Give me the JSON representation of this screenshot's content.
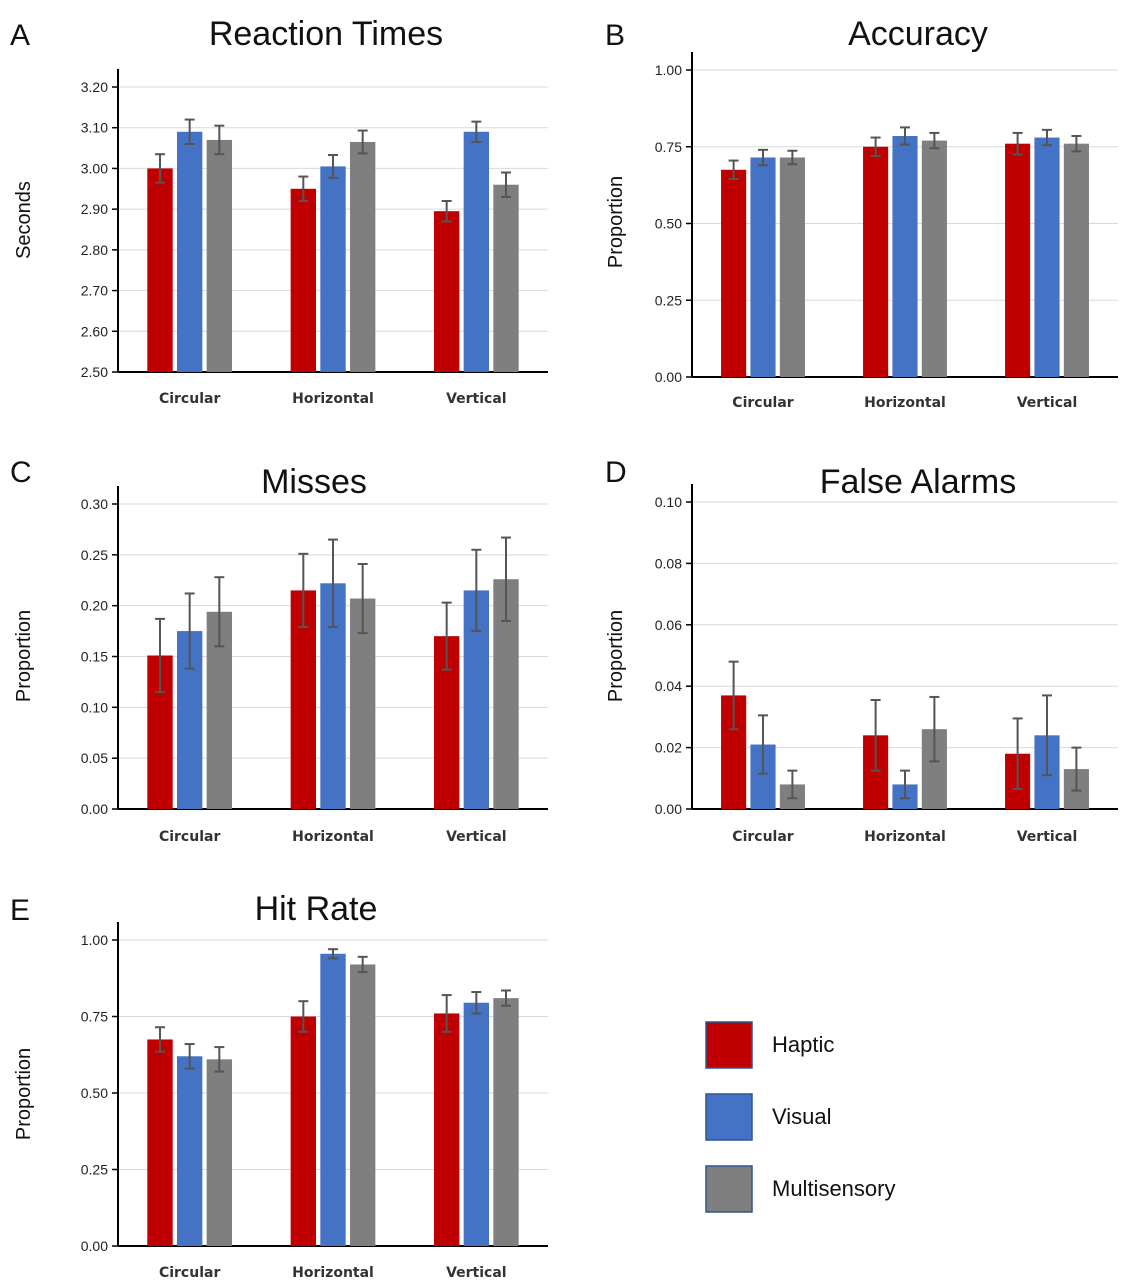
{
  "legend": {
    "items": [
      {
        "name": "Haptic",
        "color": "#c00000"
      },
      {
        "name": "Visual",
        "color": "#4472c4"
      },
      {
        "name": "Multisensory",
        "color": "#7f7f7f"
      }
    ]
  },
  "chart_data": [
    {
      "panel": "A",
      "type": "bar",
      "title": "Reaction Times",
      "ylabel": "Seconds",
      "categories": [
        "Circular",
        "Horizontal",
        "Vertical"
      ],
      "ylim": [
        2.5,
        3.2
      ],
      "yticks": [
        "2.50",
        "2.60",
        "2.70",
        "2.80",
        "2.90",
        "3.00",
        "3.10",
        "3.20"
      ],
      "grid": true,
      "series": [
        {
          "name": "Haptic",
          "values": [
            3.0,
            2.95,
            2.895
          ],
          "errors": [
            0.035,
            0.03,
            0.025
          ]
        },
        {
          "name": "Visual",
          "values": [
            3.09,
            3.005,
            3.09
          ],
          "errors": [
            0.03,
            0.028,
            0.025
          ]
        },
        {
          "name": "Multisensory",
          "values": [
            3.07,
            3.065,
            2.96
          ],
          "errors": [
            0.035,
            0.028,
            0.03
          ]
        }
      ]
    },
    {
      "panel": "B",
      "type": "bar",
      "title": "Accuracy",
      "ylabel": "Proportion",
      "categories": [
        "Circular",
        "Horizontal",
        "Vertical"
      ],
      "ylim": [
        0,
        1
      ],
      "yticks": [
        "0.00",
        "0.25",
        "0.50",
        "0.75",
        "1.00"
      ],
      "grid": true,
      "series": [
        {
          "name": "Haptic",
          "values": [
            0.675,
            0.75,
            0.76
          ],
          "errors": [
            0.03,
            0.03,
            0.035
          ]
        },
        {
          "name": "Visual",
          "values": [
            0.715,
            0.785,
            0.78
          ],
          "errors": [
            0.025,
            0.028,
            0.025
          ]
        },
        {
          "name": "Multisensory",
          "values": [
            0.715,
            0.77,
            0.76
          ],
          "errors": [
            0.022,
            0.025,
            0.025
          ]
        }
      ]
    },
    {
      "panel": "C",
      "type": "bar",
      "title": "Misses",
      "ylabel": "Proportion",
      "categories": [
        "Circular",
        "Horizontal",
        "Vertical"
      ],
      "ylim": [
        0,
        0.3
      ],
      "yticks": [
        "0.00",
        "0.05",
        "0.10",
        "0.15",
        "0.20",
        "0.25",
        "0.30"
      ],
      "grid": true,
      "series": [
        {
          "name": "Haptic",
          "values": [
            0.151,
            0.215,
            0.17
          ],
          "errors": [
            0.036,
            0.036,
            0.033
          ]
        },
        {
          "name": "Visual",
          "values": [
            0.175,
            0.222,
            0.215
          ],
          "errors": [
            0.037,
            0.043,
            0.04
          ]
        },
        {
          "name": "Multisensory",
          "values": [
            0.194,
            0.207,
            0.226
          ],
          "errors": [
            0.034,
            0.034,
            0.041
          ]
        }
      ]
    },
    {
      "panel": "D",
      "type": "bar",
      "title": "False Alarms",
      "ylabel": "Proportion",
      "categories": [
        "Circular",
        "Horizontal",
        "Vertical"
      ],
      "ylim": [
        0,
        0.1
      ],
      "yticks": [
        "0.00",
        "0.02",
        "0.04",
        "0.06",
        "0.08",
        "0.10"
      ],
      "grid": true,
      "series": [
        {
          "name": "Haptic",
          "values": [
            0.037,
            0.024,
            0.018
          ],
          "errors": [
            0.011,
            0.0115,
            0.0115
          ]
        },
        {
          "name": "Visual",
          "values": [
            0.021,
            0.008,
            0.024
          ],
          "errors": [
            0.0095,
            0.0045,
            0.013
          ]
        },
        {
          "name": "Multisensory",
          "values": [
            0.008,
            0.026,
            0.013
          ],
          "errors": [
            0.0045,
            0.0105,
            0.007
          ]
        }
      ]
    },
    {
      "panel": "E",
      "type": "bar",
      "title": "Hit Rate",
      "ylabel": "Proportion",
      "categories": [
        "Circular",
        "Horizontal",
        "Vertical"
      ],
      "ylim": [
        0,
        1
      ],
      "yticks": [
        "0.00",
        "0.25",
        "0.50",
        "0.75",
        "1.00"
      ],
      "grid": true,
      "series": [
        {
          "name": "Haptic",
          "values": [
            0.675,
            0.75,
            0.76
          ],
          "errors": [
            0.04,
            0.05,
            0.06
          ]
        },
        {
          "name": "Visual",
          "values": [
            0.62,
            0.955,
            0.795
          ],
          "errors": [
            0.04,
            0.015,
            0.035
          ]
        },
        {
          "name": "Multisensory",
          "values": [
            0.61,
            0.92,
            0.81
          ],
          "errors": [
            0.04,
            0.025,
            0.025
          ]
        }
      ]
    }
  ]
}
